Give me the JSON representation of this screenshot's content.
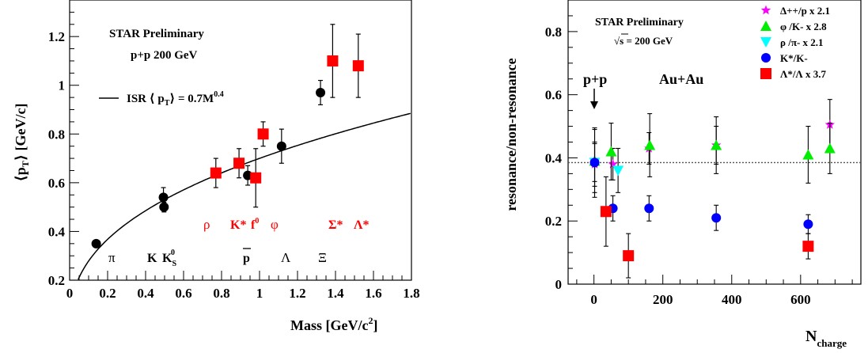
{
  "left_panel": {
    "legend_title_line1": "STAR Preliminary",
    "legend_title_line2": "p+p 200 GeV",
    "fit_label_main": "ISR ⟨ p",
    "fit_label_sub": "T",
    "fit_label_rest": "⟩ = 0.7M",
    "fit_label_exp": "0.4",
    "ylabel_main": "⟨p",
    "ylabel_sub": "T",
    "ylabel_rest": "⟩ [GeV/c]",
    "xlabel_main": "Mass [GeV/c",
    "xlabel_sup": "2",
    "xlabel_end": "]",
    "red_particles": [
      "ρ",
      "K*",
      "f",
      "0",
      "φ",
      "Σ*",
      "Λ*"
    ],
    "black_particles": [
      "π",
      "K",
      "K",
      "S",
      "0",
      "p",
      "Λ",
      "Ξ"
    ],
    "x_ticks": [
      "0",
      "0.2",
      "0.4",
      "0.6",
      "0.8",
      "1",
      "1.2",
      "1.4",
      "1.6",
      "1.8"
    ],
    "y_ticks": [
      "0.2",
      "0.4",
      "0.6",
      "0.8",
      "1",
      "1.2"
    ]
  },
  "right_panel": {
    "star_label": "STAR Preliminary",
    "sqrt_label": "s = 200 GeV",
    "sqrt_symbol": "√",
    "pp_label": "p+p",
    "auau_label": "Au+Au",
    "ylabel": "resonance/non-resonance",
    "xlabel_main": "N",
    "xlabel_sub": "charge",
    "x_ticks": [
      "0",
      "200",
      "400",
      "600"
    ],
    "y_ticks": [
      "0",
      "0.2",
      "0.4",
      "0.6",
      "0.8"
    ],
    "legend": [
      {
        "label": "Δ++/p  x 2.1",
        "marker": "star",
        "color": "#ff00ff"
      },
      {
        "label": "φ /K-  x 2.8",
        "marker": "triangle-up",
        "color": "#00ee00"
      },
      {
        "label": "ρ /π-  x 2.1",
        "marker": "triangle-down",
        "color": "#00ffff"
      },
      {
        "label": "K*/K-",
        "marker": "circle",
        "color": "#0000ff"
      },
      {
        "label": "Λ*/Λ  x 3.7",
        "marker": "square",
        "color": "#ff0000"
      }
    ]
  },
  "chart_data": [
    {
      "type": "scatter",
      "xlabel": "Mass [GeV/c2]",
      "ylabel": "<pT> [GeV/c]",
      "xlim": [
        0,
        1.8
      ],
      "ylim": [
        0.2,
        1.35
      ],
      "fit_curve": {
        "label": "ISR <pT> = 0.7M^0.4",
        "a": 0.7,
        "b": 0.4
      },
      "series": [
        {
          "name": "black",
          "color": "#000000",
          "marker": "circle",
          "points": [
            {
              "x": 0.14,
              "y": 0.35,
              "err": 0.0
            },
            {
              "x": 0.497,
              "y": 0.5,
              "err": 0.02
            },
            {
              "x": 0.494,
              "y": 0.54,
              "err": 0.04
            },
            {
              "x": 0.938,
              "y": 0.63,
              "err": 0.04
            },
            {
              "x": 1.116,
              "y": 0.75,
              "err": 0.07
            },
            {
              "x": 1.321,
              "y": 0.97,
              "err": 0.05
            }
          ]
        },
        {
          "name": "red",
          "color": "#ff0000",
          "marker": "square",
          "points": [
            {
              "x": 0.77,
              "y": 0.64,
              "err": 0.06
            },
            {
              "x": 0.892,
              "y": 0.68,
              "err": 0.06
            },
            {
              "x": 0.98,
              "y": 0.62,
              "err": 0.12
            },
            {
              "x": 1.019,
              "y": 0.8,
              "err": 0.05
            },
            {
              "x": 1.385,
              "y": 1.1,
              "err": 0.15
            },
            {
              "x": 1.52,
              "y": 1.08,
              "err": 0.13
            }
          ]
        }
      ]
    },
    {
      "type": "scatter",
      "xlabel": "N charge",
      "ylabel": "resonance/non-resonance",
      "xlim": [
        -75,
        775
      ],
      "ylim": [
        0,
        0.9
      ],
      "reference_line": 0.385,
      "series": [
        {
          "name": "Δ++/p x 2.1",
          "color": "#ff00ff",
          "marker": "star",
          "points": [
            {
              "x": 2,
              "y": 0.38,
              "err": 0.07
            },
            {
              "x": 55,
              "y": 0.38,
              "err": 0.05
            },
            {
              "x": 160,
              "y": 0.43,
              "err": 0.05
            },
            {
              "x": 355,
              "y": 0.44,
              "err": 0.06
            },
            {
              "x": 685,
              "y": 0.505,
              "err": 0.08
            }
          ]
        },
        {
          "name": "φ /K- x 2.8",
          "color": "#00ee00",
          "marker": "triangle-up",
          "points": [
            {
              "x": 2,
              "y": 0.39,
              "err": 0.1
            },
            {
              "x": 50,
              "y": 0.42,
              "err": 0.09
            },
            {
              "x": 162,
              "y": 0.44,
              "err": 0.1
            },
            {
              "x": 355,
              "y": 0.44,
              "err": 0.09
            },
            {
              "x": 622,
              "y": 0.41,
              "err": 0.09
            },
            {
              "x": 685,
              "y": 0.43,
              "err": 0.08
            }
          ]
        },
        {
          "name": "ρ /π- x 2.1",
          "color": "#00ffff",
          "marker": "triangle-down",
          "points": [
            {
              "x": 2,
              "y": 0.385,
              "err": 0.11
            },
            {
              "x": 70,
              "y": 0.36,
              "err": 0.07
            }
          ]
        },
        {
          "name": "K*/K-",
          "color": "#0000ff",
          "marker": "circle",
          "points": [
            {
              "x": 2,
              "y": 0.385,
              "err": 0.06
            },
            {
              "x": 55,
              "y": 0.24,
              "err": 0.04
            },
            {
              "x": 160,
              "y": 0.24,
              "err": 0.04
            },
            {
              "x": 355,
              "y": 0.21,
              "err": 0.04
            },
            {
              "x": 622,
              "y": 0.19,
              "err": 0.03
            }
          ]
        },
        {
          "name": "Λ*/Λ x 3.7",
          "color": "#ff0000",
          "marker": "square",
          "points": [
            {
              "x": 35,
              "y": 0.23,
              "err": 0.11
            },
            {
              "x": 100,
              "y": 0.09,
              "err": 0.07
            },
            {
              "x": 622,
              "y": 0.12,
              "err": 0.04
            }
          ]
        }
      ]
    }
  ]
}
